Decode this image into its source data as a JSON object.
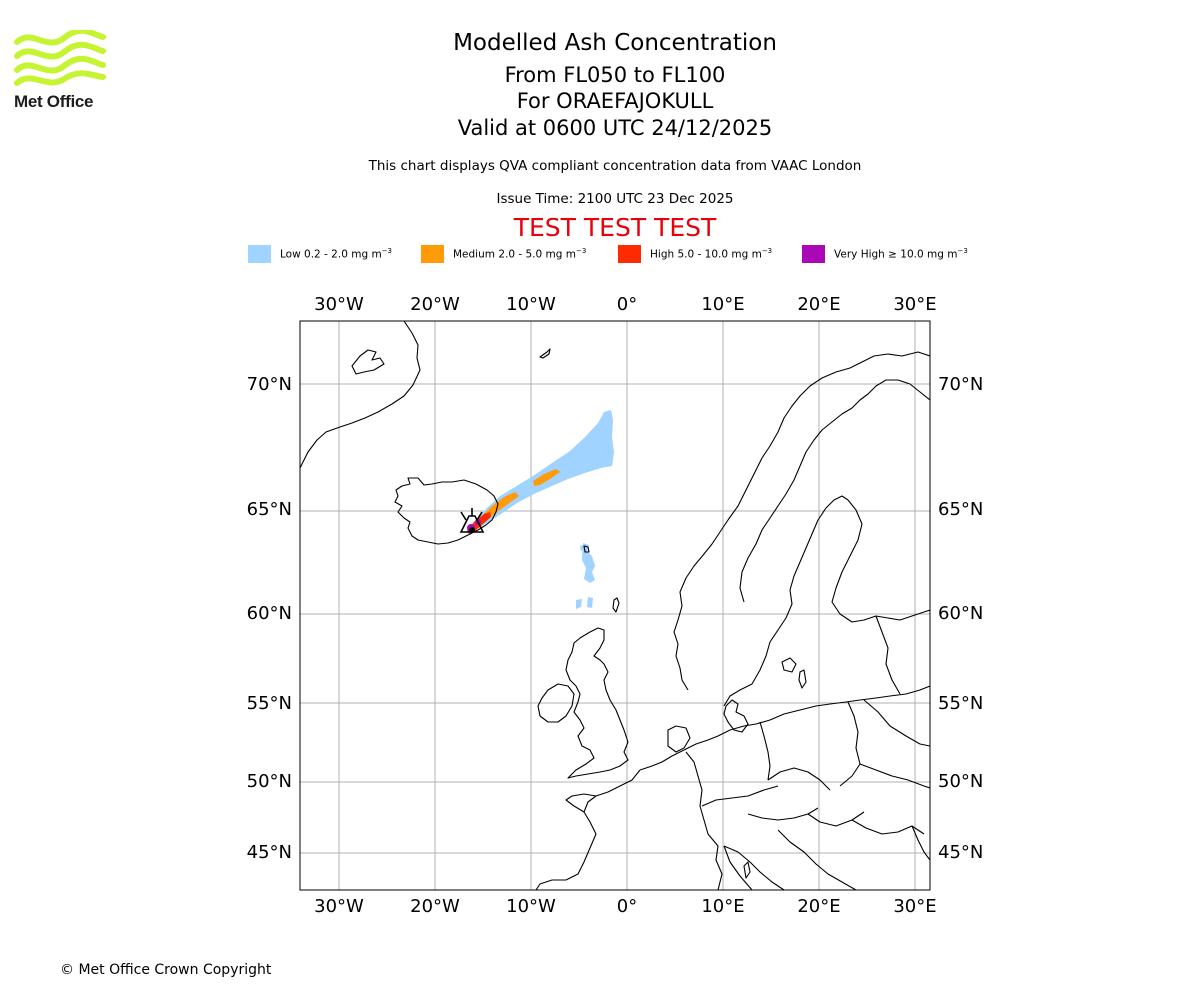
{
  "logo": {
    "text": "Met Office",
    "colors": {
      "waves": "#c6f432"
    }
  },
  "header": {
    "title": "Modelled Ash Concentration",
    "level_range": "From FL050 to FL100",
    "volcano_line": "For ORAEFAJOKULL",
    "valid_time": "Valid at 0600 UTC 24/12/2025",
    "description": "This chart displays QVA compliant concentration data from VAAC London",
    "issue_time": "Issue Time: 2100 UTC 23 Dec 2025",
    "test_banner": "TEST TEST TEST"
  },
  "legend": [
    {
      "label": "Low 0.2 - 2.0 mg m",
      "exponent": "−3",
      "color": "#a0d3ff"
    },
    {
      "label": "Medium 2.0 - 5.0 mg m",
      "exponent": "−3",
      "color": "#ff9a09"
    },
    {
      "label": "High 5.0 - 10.0 mg m",
      "exponent": "−3",
      "color": "#ff2b00"
    },
    {
      "label": "Very High ≥ 10.0 mg m",
      "exponent": "−3",
      "color": "#a908b4"
    }
  ],
  "map": {
    "longitude_ticks": [
      "30°W",
      "20°W",
      "10°W",
      "0°",
      "10°E",
      "20°E",
      "30°E"
    ],
    "latitude_ticks": [
      "70°N",
      "65°N",
      "60°N",
      "55°N",
      "50°N",
      "45°N"
    ],
    "volcano": {
      "name": "ORAEFAJOKULL",
      "lat": 64.0,
      "lon": -16.65
    }
  },
  "footer": {
    "copyright": "© Met Office Crown Copyright"
  }
}
